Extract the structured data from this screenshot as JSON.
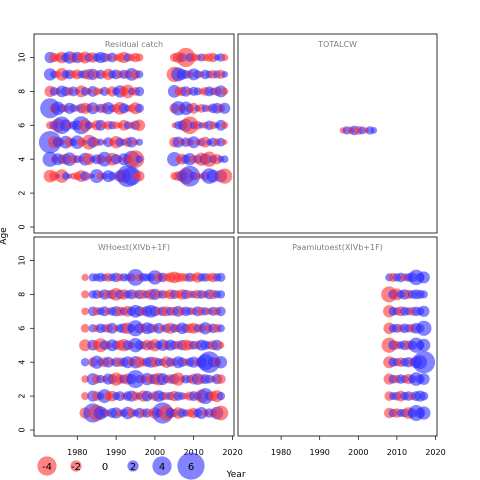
{
  "chart_data": {
    "type": "scatter",
    "subtype": "bubble-residual-panels",
    "xlabel": "Year",
    "ylabel": "Age",
    "xlim": [
      1970,
      2020
    ],
    "ylim": [
      0,
      11
    ],
    "xticks": [
      1980,
      1990,
      2000,
      2010,
      2020
    ],
    "yticks": [
      0,
      2,
      4,
      6,
      8,
      10
    ],
    "colors": {
      "negative": "#ff3030",
      "positive": "#3030ff",
      "frame": "#000000",
      "title": "#808080"
    },
    "legend": {
      "placement": "bottom-left",
      "items": [
        {
          "label": "-4",
          "value": -4
        },
        {
          "label": "-2",
          "value": -2
        },
        {
          "label": "0",
          "value": 0
        },
        {
          "label": "2",
          "value": 2
        },
        {
          "label": "4",
          "value": 4
        },
        {
          "label": "6",
          "value": 6
        }
      ]
    },
    "panels": [
      {
        "title": "Residual catch",
        "years": [
          1973,
          1974,
          1975,
          1976,
          1977,
          1978,
          1979,
          1980,
          1981,
          1982,
          1983,
          1984,
          1985,
          1986,
          1987,
          1988,
          1989,
          1990,
          1991,
          1992,
          1993,
          1994,
          1995,
          1996,
          2005,
          2006,
          2007,
          2008,
          2009,
          2010,
          2011,
          2012,
          2013,
          2014,
          2015,
          2016,
          2017,
          2018
        ],
        "ages": [
          3,
          4,
          5,
          6,
          7,
          8,
          9,
          10
        ],
        "residuals": [
          [
            -2.4,
            -1.6,
            0.4,
            -2.6,
            1.1,
            0.5,
            -0.9,
            -1.3,
            -2.1,
            1.6,
            -0.7,
            0.3,
            2.7,
            -1.1,
            0.9,
            2.2,
            1.4,
            -0.5,
            2.1,
            -2.7,
            4.7,
            3.9,
            -0.6,
            -1.8,
            -1.2,
            -1.7,
            2.0,
            -3.2,
            4.4,
            1.3,
            -0.8,
            0.6,
            -1.5,
            3.1,
            2.4,
            -0.6,
            2.3,
            -3.0
          ],
          [
            3.0,
            -0.8,
            2.2,
            1.5,
            -1.9,
            2.6,
            -1.4,
            1.2,
            -0.9,
            2.4,
            -2.1,
            0.8,
            1.7,
            -1.6,
            2.9,
            1.0,
            -2.4,
            1.8,
            -0.7,
            2.2,
            -1.5,
            3.4,
            -3.6,
            1.1,
            2.8,
            -0.6,
            -1.9,
            1.5,
            2.3,
            -1.2,
            1.4,
            -2.5,
            2.0,
            -3.0,
            1.2,
            -1.8,
            0.9,
            1.1
          ],
          [
            4.8,
            -2.2,
            1.8,
            -0.8,
            2.4,
            -1.6,
            1.1,
            2.6,
            -1.3,
            0.5,
            -2.9,
            1.9,
            -1.2,
            1.0,
            -0.4,
            1.7,
            -0.9,
            -2.3,
            1.5,
            0.8,
            -1.6,
            1.9,
            -0.7,
            1.0,
            -1.8,
            2.0,
            -0.9,
            1.6,
            -1.2,
            2.2,
            -0.7,
            1.3,
            -1.9,
            0.8,
            1.5,
            -1.1,
            1.4,
            -0.6
          ],
          [
            -1.2,
            1.5,
            -2.6,
            3.6,
            2.1,
            -0.9,
            1.4,
            1.7,
            3.7,
            -2.3,
            1.2,
            -0.6,
            -1.8,
            1.9,
            -0.8,
            -1.5,
            1.3,
            -1.1,
            -0.7,
            -1.9,
            1.2,
            -0.9,
            1.6,
            -2.1,
            -0.6,
            1.3,
            1.7,
            2.4,
            -3.6,
            1.1,
            -1.4,
            0.8,
            -0.9,
            1.6,
            -1.2,
            0.7,
            1.9,
            -1.0
          ],
          [
            4.2,
            -1.5,
            2.6,
            1.3,
            -1.1,
            2.0,
            1.2,
            -0.8,
            1.6,
            -2.0,
            -1.3,
            2.2,
            -0.9,
            1.5,
            -1.6,
            2.3,
            1.1,
            -1.4,
            -2.4,
            1.8,
            0.9,
            -1.2,
            -2.2,
            1.5,
            -1.7,
            2.8,
            -1.2,
            2.6,
            1.4,
            -1.9,
            0.8,
            -1.4,
            1.1,
            -0.9,
            1.6,
            1.9,
            -1.3,
            2.0
          ],
          [
            -2.0,
            1.4,
            -0.9,
            2.1,
            1.6,
            -1.3,
            1.7,
            0.6,
            -2.2,
            1.4,
            -0.8,
            1.9,
            -1.2,
            -0.7,
            1.5,
            -0.6,
            -1.8,
            1.2,
            2.3,
            -1.5,
            -2.6,
            1.0,
            -1.4,
            1.6,
            2.4,
            -1.3,
            -1.6,
            1.8,
            -0.9,
            1.5,
            1.2,
            -0.8,
            -1.4,
            1.7,
            1.1,
            -1.5,
            2.2,
            -1.0
          ],
          [
            2.3,
            1.1,
            -0.9,
            -2.4,
            1.3,
            1.6,
            -1.2,
            -1.7,
            1.1,
            1.5,
            -1.9,
            2.0,
            -1.2,
            1.6,
            -0.9,
            -2.0,
            1.3,
            1.7,
            -1.1,
            1.5,
            -1.3,
            2.4,
            -1.6,
            1.2,
            -3.0,
            2.7,
            1.9,
            1.4,
            -1.2,
            2.2,
            1.3,
            -0.8,
            1.6,
            1.1,
            -1.4,
            1.2,
            -1.5,
            0.9
          ],
          [
            2.0,
            -1.6,
            -1.2,
            -2.1,
            1.5,
            2.3,
            -1.7,
            2.0,
            -1.5,
            -2.2,
            1.4,
            -1.8,
            1.3,
            2.0,
            1.6,
            -1.1,
            1.7,
            -0.9,
            -1.4,
            -2.0,
            1.3,
            -1.1,
            -1.6,
            -1.2,
            -1.4,
            -1.9,
            1.5,
            -4.0,
            1.3,
            -1.3,
            -0.9,
            1.2,
            -1.1,
            -1.3,
            -1.6,
            0.8,
            1.3,
            -1.0
          ]
        ]
      },
      {
        "title": "TOTALCW",
        "years": [
          1996,
          1997,
          1998,
          1999,
          2000,
          2001,
          2002,
          2003,
          2004
        ],
        "ages": [
          5.7
        ],
        "residuals": [
          [
            -0.8,
            1.3,
            -1.1,
            1.6,
            -1.4,
            1.2,
            -0.7,
            1.3,
            0.9
          ]
        ]
      },
      {
        "title": "WHoest(XIVb+1F)",
        "years": [
          1982,
          1984,
          1985,
          1986,
          1987,
          1988,
          1989,
          1990,
          1991,
          1992,
          1993,
          1994,
          1995,
          1996,
          1997,
          1998,
          1999,
          2000,
          2001,
          2002,
          2003,
          2004,
          2005,
          2006,
          2007,
          2008,
          2009,
          2010,
          2011,
          2012,
          2013,
          2014,
          2015,
          2016,
          2017
        ],
        "ages": [
          1,
          2,
          3,
          4,
          5,
          6,
          7,
          8,
          9
        ],
        "residuals": [
          [
            -2.0,
            4.0,
            -3.2,
            2.6,
            1.4,
            -0.9,
            1.7,
            2.0,
            -1.1,
            1.2,
            2.3,
            -1.5,
            1.0,
            1.8,
            -1.4,
            1.6,
            -0.8,
            -2.1,
            1.3,
            4.5,
            -3.0,
            1.7,
            1.2,
            -2.1,
            1.5,
            1.0,
            -1.3,
            -1.8,
            1.4,
            2.2,
            -1.0,
            1.6,
            -1.3,
            2.4,
            -2.9
          ],
          [
            -1.2,
            2.0,
            -1.6,
            1.1,
            2.7,
            -1.3,
            -1.9,
            1.2,
            1.7,
            -0.9,
            1.6,
            2.0,
            -1.5,
            1.0,
            -2.0,
            1.9,
            0.8,
            -1.7,
            2.1,
            1.4,
            -1.2,
            1.3,
            -1.8,
            1.5,
            1.1,
            -0.9,
            -1.5,
            1.7,
            1.2,
            -2.5,
            3.2,
            1.4,
            -1.7,
            -2.2,
            1.3
          ],
          [
            -1.1,
            2.2,
            -1.5,
            1.3,
            -0.8,
            2.0,
            1.6,
            -2.5,
            -1.6,
            1.5,
            -2.0,
            1.8,
            3.7,
            1.3,
            -1.2,
            2.3,
            -1.7,
            1.9,
            -2.4,
            2.2,
            1.2,
            -1.6,
            1.8,
            -2.5,
            -0.9,
            1.4,
            1.2,
            -1.9,
            2.1,
            -1.6,
            1.7,
            1.4,
            -0.8,
            1.8,
            -1.6
          ],
          [
            1.3,
            -1.6,
            2.5,
            1.1,
            -1.7,
            1.9,
            -0.9,
            1.6,
            -1.6,
            1.5,
            2.2,
            -1.3,
            2.3,
            -1.9,
            -1.2,
            1.6,
            2.0,
            -1.8,
            1.3,
            1.1,
            -2.1,
            1.5,
            -1.2,
            2.2,
            1.6,
            -1.0,
            1.5,
            2.0,
            -1.2,
            1.9,
            3.3,
            4.6,
            1.8,
            -1.5,
            2.3
          ],
          [
            -2.2,
            1.9,
            -1.4,
            -2.7,
            1.6,
            -1.1,
            2.2,
            1.4,
            -1.8,
            -2.3,
            1.7,
            -0.9,
            2.8,
            1.6,
            1.2,
            -1.9,
            1.5,
            -2.3,
            1.3,
            2.1,
            -1.5,
            2.0,
            1.4,
            -1.4,
            1.8,
            -2.0,
            -1.6,
            1.4,
            -1.3,
            2.0,
            1.6,
            1.2,
            -1.7,
            1.9,
            -0.9
          ],
          [
            -1.4,
            1.3,
            -1.0,
            1.6,
            1.2,
            -1.5,
            1.9,
            -0.8,
            1.4,
            1.8,
            -2.1,
            1.3,
            3.2,
            1.7,
            -1.4,
            2.2,
            1.6,
            -1.2,
            1.9,
            -0.8,
            1.5,
            -2.0,
            1.4,
            -1.2,
            2.1,
            1.5,
            -1.6,
            -1.9,
            1.3,
            -1.5,
            2.3,
            -1.2,
            1.6,
            -1.4,
            1.2
          ],
          [
            -1.1,
            1.6,
            -1.3,
            1.2,
            1.7,
            -1.0,
            1.4,
            1.8,
            -1.6,
            1.3,
            -1.9,
            1.5,
            2.4,
            1.7,
            -1.4,
            1.9,
            2.4,
            1.8,
            -1.2,
            1.6,
            -1.7,
            1.4,
            -1.5,
            1.9,
            -1.3,
            1.6,
            1.2,
            -1.1,
            1.7,
            -1.4,
            1.3,
            -1.0,
            1.5,
            -1.3,
            1.6
          ],
          [
            -1.2,
            1.3,
            1.5,
            -1.0,
            1.8,
            -1.4,
            1.6,
            -2.4,
            1.5,
            -1.8,
            1.3,
            1.7,
            -1.2,
            1.6,
            -1.5,
            1.2,
            -1.9,
            2.0,
            -1.3,
            1.4,
            -1.1,
            -1.7,
            1.5,
            -1.3,
            -1.8,
            1.6,
            -1.2,
            1.1,
            -1.5,
            1.4,
            -1.0,
            1.7,
            -1.6,
            1.2,
            1.3
          ],
          [
            -1.0,
            1.3,
            1.2,
            1.5,
            1.1,
            -1.4,
            1.2,
            1.6,
            -1.2,
            1.3,
            1.0,
            -1.3,
            3.4,
            -1.1,
            1.4,
            1.2,
            1.3,
            2.8,
            -1.5,
            1.6,
            -1.2,
            -1.7,
            -2.1,
            -1.6,
            -1.4,
            -1.3,
            1.5,
            -1.2,
            -1.8,
            1.3,
            1.4,
            -1.2,
            -1.6,
            1.3,
            1.5
          ]
        ]
      },
      {
        "title": "Paamiutoest(XIVb+1F)",
        "years": [
          2008,
          2009,
          2010,
          2011,
          2012,
          2013,
          2014,
          2015,
          2016,
          2017
        ],
        "ages": [
          1,
          2,
          3,
          4,
          5,
          6,
          7,
          8,
          9
        ],
        "residuals": [
          [
            -1.8,
            1.3,
            -1.6,
            1.2,
            1.4,
            -2.1,
            1.6,
            3.2,
            1.8,
            2.5
          ],
          [
            -1.6,
            1.2,
            1.4,
            -1.9,
            1.3,
            1.6,
            -1.2,
            1.7,
            2.0,
            1.4
          ],
          [
            -2.0,
            1.4,
            -1.3,
            1.6,
            1.2,
            -1.8,
            1.3,
            2.6,
            1.5,
            2.1
          ],
          [
            -2.2,
            1.5,
            1.3,
            -1.6,
            1.4,
            1.8,
            -1.2,
            2.2,
            2.7,
            4.8
          ],
          [
            -3.0,
            1.6,
            -1.4,
            1.2,
            1.7,
            -1.6,
            1.5,
            3.0,
            1.4,
            2.4
          ],
          [
            -2.1,
            1.3,
            1.5,
            -1.2,
            1.6,
            1.3,
            -1.5,
            1.9,
            1.4,
            3.0
          ],
          [
            -2.3,
            1.4,
            1.2,
            -1.7,
            1.5,
            1.2,
            -1.4,
            1.6,
            1.3,
            2.0
          ],
          [
            -3.2,
            1.6,
            -2.2,
            1.3,
            1.8,
            -1.5,
            1.4,
            1.7,
            1.5,
            1.2
          ],
          [
            1.2,
            -1.5,
            1.3,
            1.6,
            -1.2,
            1.4,
            1.7,
            3.1,
            1.5,
            2.2
          ]
        ]
      }
    ]
  }
}
